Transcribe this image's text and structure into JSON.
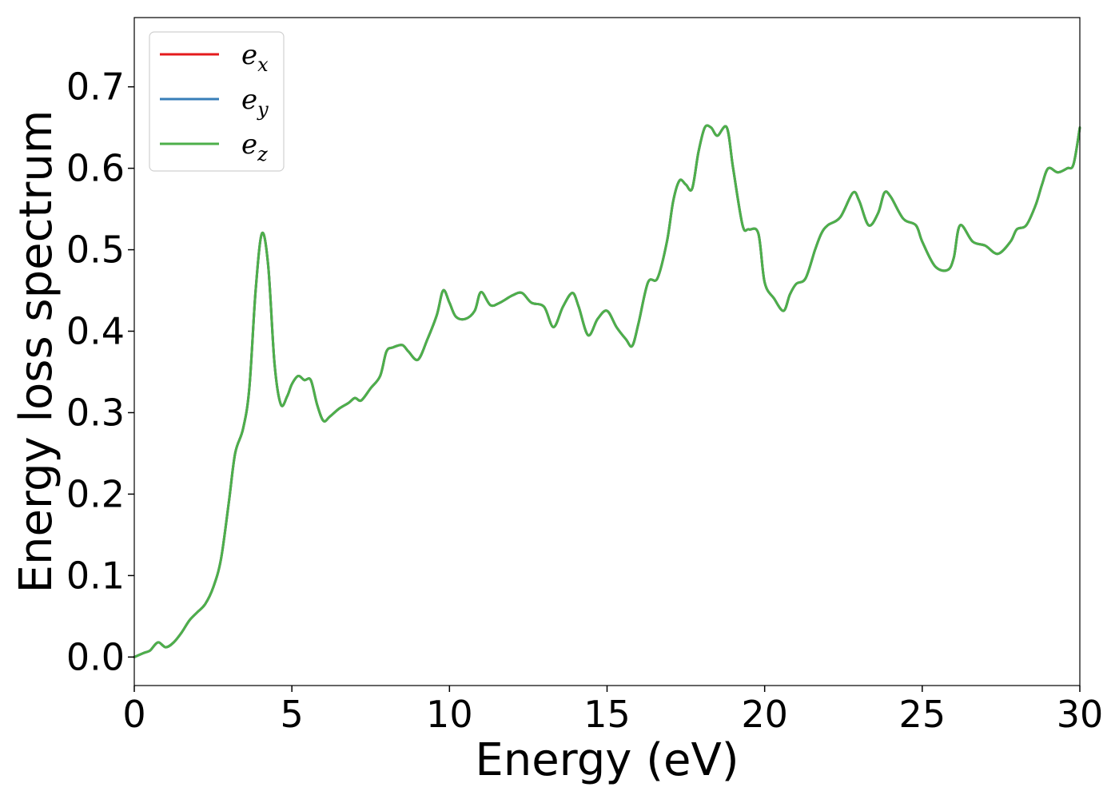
{
  "chart_data": {
    "type": "line",
    "xlabel": "Energy (eV)",
    "ylabel": "Energy loss spectrum",
    "xlim": [
      0,
      30
    ],
    "ylim": [
      -0.035,
      0.785
    ],
    "xticks": [
      0,
      5,
      10,
      15,
      20,
      25,
      30
    ],
    "xtick_labels": [
      "0",
      "5",
      "10",
      "15",
      "20",
      "25",
      "30"
    ],
    "yticks": [
      0.0,
      0.1,
      0.2,
      0.3,
      0.4,
      0.5,
      0.6,
      0.7
    ],
    "ytick_labels": [
      "0.0",
      "0.1",
      "0.2",
      "0.3",
      "0.4",
      "0.5",
      "0.6",
      "0.7"
    ],
    "grid": false,
    "legend_position": "top-left",
    "x": [
      0,
      0.3,
      0.5,
      0.75,
      1.0,
      1.25,
      1.5,
      1.75,
      2.0,
      2.25,
      2.5,
      2.75,
      3.0,
      3.2,
      3.45,
      3.65,
      3.85,
      4.05,
      4.25,
      4.45,
      4.65,
      4.85,
      5.0,
      5.2,
      5.4,
      5.6,
      5.8,
      6.0,
      6.2,
      6.5,
      6.8,
      7.0,
      7.2,
      7.5,
      7.8,
      8.0,
      8.2,
      8.5,
      8.7,
      9.0,
      9.3,
      9.6,
      9.8,
      10.0,
      10.2,
      10.5,
      10.8,
      11.0,
      11.3,
      11.6,
      12.0,
      12.3,
      12.6,
      13.0,
      13.3,
      13.6,
      13.9,
      14.1,
      14.4,
      14.7,
      15.0,
      15.3,
      15.6,
      15.8,
      16.0,
      16.3,
      16.6,
      16.9,
      17.1,
      17.3,
      17.5,
      17.7,
      17.9,
      18.1,
      18.3,
      18.5,
      18.8,
      19.0,
      19.3,
      19.5,
      19.8,
      20.0,
      20.3,
      20.6,
      20.8,
      21.0,
      21.3,
      21.6,
      21.8,
      22.0,
      22.4,
      22.8,
      23.0,
      23.3,
      23.6,
      23.8,
      24.0,
      24.4,
      24.8,
      25.0,
      25.4,
      25.8,
      26.0,
      26.2,
      26.6,
      27.0,
      27.4,
      27.8,
      28.0,
      28.3,
      28.6,
      28.8,
      29.0,
      29.3,
      29.6,
      29.8,
      30.0
    ],
    "series": [
      {
        "name": "e_x",
        "color": "#e41a1c",
        "values": [
          0.0,
          0.005,
          0.008,
          0.018,
          0.012,
          0.018,
          0.03,
          0.045,
          0.055,
          0.065,
          0.085,
          0.12,
          0.19,
          0.25,
          0.28,
          0.33,
          0.45,
          0.52,
          0.48,
          0.36,
          0.31,
          0.32,
          0.335,
          0.345,
          0.34,
          0.34,
          0.31,
          0.29,
          0.295,
          0.305,
          0.312,
          0.318,
          0.315,
          0.33,
          0.345,
          0.375,
          0.38,
          0.383,
          0.375,
          0.365,
          0.39,
          0.42,
          0.45,
          0.435,
          0.418,
          0.415,
          0.425,
          0.448,
          0.432,
          0.435,
          0.444,
          0.447,
          0.435,
          0.43,
          0.405,
          0.43,
          0.447,
          0.43,
          0.395,
          0.415,
          0.425,
          0.405,
          0.39,
          0.382,
          0.41,
          0.46,
          0.465,
          0.51,
          0.56,
          0.585,
          0.58,
          0.575,
          0.62,
          0.65,
          0.65,
          0.64,
          0.65,
          0.6,
          0.53,
          0.525,
          0.52,
          0.46,
          0.44,
          0.425,
          0.445,
          0.458,
          0.465,
          0.5,
          0.52,
          0.53,
          0.54,
          0.57,
          0.56,
          0.53,
          0.545,
          0.57,
          0.565,
          0.538,
          0.53,
          0.51,
          0.48,
          0.475,
          0.49,
          0.53,
          0.51,
          0.505,
          0.495,
          0.51,
          0.525,
          0.53,
          0.555,
          0.58,
          0.6,
          0.595,
          0.6,
          0.605,
          0.65
        ]
      },
      {
        "name": "e_y",
        "color": "#377eb8",
        "values": [
          0.0,
          0.005,
          0.008,
          0.018,
          0.012,
          0.018,
          0.03,
          0.045,
          0.055,
          0.065,
          0.085,
          0.12,
          0.19,
          0.25,
          0.28,
          0.33,
          0.45,
          0.52,
          0.48,
          0.36,
          0.31,
          0.32,
          0.335,
          0.345,
          0.34,
          0.34,
          0.31,
          0.29,
          0.295,
          0.305,
          0.312,
          0.318,
          0.315,
          0.33,
          0.345,
          0.375,
          0.38,
          0.383,
          0.375,
          0.365,
          0.39,
          0.42,
          0.45,
          0.435,
          0.418,
          0.415,
          0.425,
          0.448,
          0.432,
          0.435,
          0.444,
          0.447,
          0.435,
          0.43,
          0.405,
          0.43,
          0.447,
          0.43,
          0.395,
          0.415,
          0.425,
          0.405,
          0.39,
          0.382,
          0.41,
          0.46,
          0.465,
          0.51,
          0.56,
          0.585,
          0.58,
          0.575,
          0.62,
          0.65,
          0.65,
          0.64,
          0.65,
          0.6,
          0.53,
          0.525,
          0.52,
          0.46,
          0.44,
          0.425,
          0.445,
          0.458,
          0.465,
          0.5,
          0.52,
          0.53,
          0.54,
          0.57,
          0.56,
          0.53,
          0.545,
          0.57,
          0.565,
          0.538,
          0.53,
          0.51,
          0.48,
          0.475,
          0.49,
          0.53,
          0.51,
          0.505,
          0.495,
          0.51,
          0.525,
          0.53,
          0.555,
          0.58,
          0.6,
          0.595,
          0.6,
          0.605,
          0.65
        ]
      },
      {
        "name": "e_z",
        "color": "#4daf4a",
        "values": [
          0.0,
          0.005,
          0.008,
          0.018,
          0.012,
          0.018,
          0.03,
          0.045,
          0.055,
          0.065,
          0.085,
          0.12,
          0.19,
          0.25,
          0.28,
          0.33,
          0.45,
          0.52,
          0.48,
          0.36,
          0.31,
          0.32,
          0.335,
          0.345,
          0.34,
          0.34,
          0.31,
          0.29,
          0.295,
          0.305,
          0.312,
          0.318,
          0.315,
          0.33,
          0.345,
          0.375,
          0.38,
          0.383,
          0.375,
          0.365,
          0.39,
          0.42,
          0.45,
          0.435,
          0.418,
          0.415,
          0.425,
          0.448,
          0.432,
          0.435,
          0.444,
          0.447,
          0.435,
          0.43,
          0.405,
          0.43,
          0.447,
          0.43,
          0.395,
          0.415,
          0.425,
          0.405,
          0.39,
          0.382,
          0.41,
          0.46,
          0.465,
          0.51,
          0.56,
          0.585,
          0.58,
          0.575,
          0.62,
          0.65,
          0.65,
          0.64,
          0.65,
          0.6,
          0.53,
          0.525,
          0.52,
          0.46,
          0.44,
          0.425,
          0.445,
          0.458,
          0.465,
          0.5,
          0.52,
          0.53,
          0.54,
          0.57,
          0.56,
          0.53,
          0.545,
          0.57,
          0.565,
          0.538,
          0.53,
          0.51,
          0.48,
          0.475,
          0.49,
          0.53,
          0.51,
          0.505,
          0.495,
          0.51,
          0.525,
          0.53,
          0.555,
          0.58,
          0.6,
          0.595,
          0.6,
          0.605,
          0.65
        ]
      }
    ],
    "legend": [
      {
        "base": "e",
        "sub": "x",
        "color": "#e41a1c"
      },
      {
        "base": "e",
        "sub": "y",
        "color": "#377eb8"
      },
      {
        "base": "e",
        "sub": "z",
        "color": "#4daf4a"
      }
    ]
  }
}
